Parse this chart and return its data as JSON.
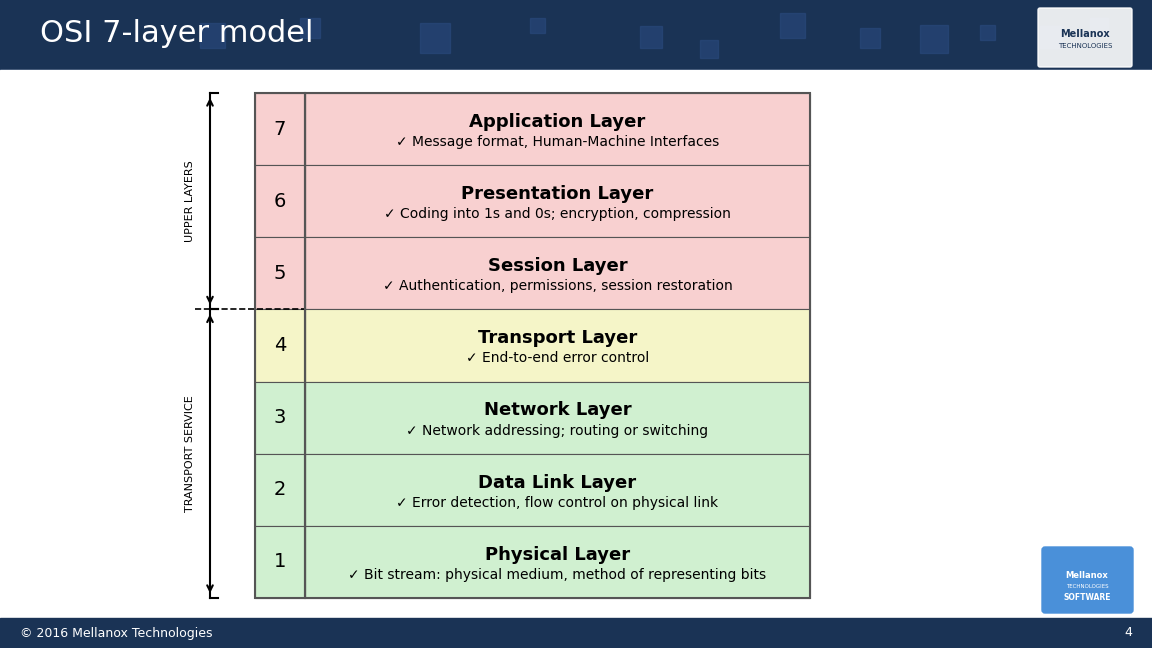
{
  "title": "OSI 7-layer model",
  "title_color": "#ffffff",
  "bg_color": "#1e3a5f",
  "content_bg": "#f0f0f0",
  "footer_text": "© 2016 Mellanox Technologies",
  "page_number": "4",
  "layers": [
    {
      "number": 7,
      "name": "Application Layer",
      "desc": "✓ Message format, Human-Machine Interfaces",
      "color": "#f8d0d0"
    },
    {
      "number": 6,
      "name": "Presentation Layer",
      "desc": "✓ Coding into 1s and 0s; encryption, compression",
      "color": "#f8d0d0"
    },
    {
      "number": 5,
      "name": "Session Layer",
      "desc": "✓ Authentication, permissions, session restoration",
      "color": "#f8d0d0"
    },
    {
      "number": 4,
      "name": "Transport Layer",
      "desc": "✓ End-to-end error control",
      "color": "#f5f5c8"
    },
    {
      "number": 3,
      "name": "Network Layer",
      "desc": "✓ Network addressing; routing or switching",
      "color": "#d0f0d0"
    },
    {
      "number": 2,
      "name": "Data Link Layer",
      "desc": "✓ Error detection, flow control on physical link",
      "color": "#d0f0d0"
    },
    {
      "number": 1,
      "name": "Physical Layer",
      "desc": "✓ Bit stream: physical medium, method of representing bits",
      "color": "#d0f0d0"
    }
  ],
  "upper_layers_label": "UPPER LAYERS",
  "transport_service_label": "TRANSPORT SERVICE",
  "header_bg": "#1e3a5f",
  "table_border_color": "#555555"
}
